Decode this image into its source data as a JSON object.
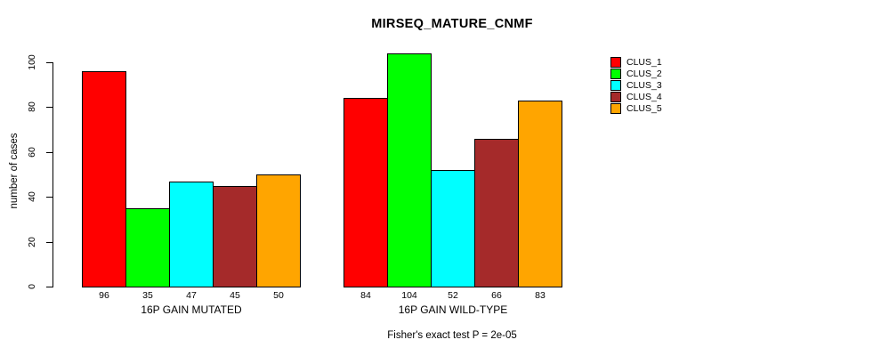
{
  "title": "MIRSEQ_MATURE_CNMF",
  "y_axis": {
    "label": "number of cases",
    "ticks": [
      0,
      20,
      40,
      60,
      80,
      100
    ]
  },
  "footer": "Fisher's exact test P = 2e-05",
  "legend": {
    "items": [
      {
        "name": "CLUS_1",
        "color": "#FF0000"
      },
      {
        "name": "CLUS_2",
        "color": "#00FF00"
      },
      {
        "name": "CLUS_3",
        "color": "#00FFFF"
      },
      {
        "name": "CLUS_4",
        "color": "#A52A2A"
      },
      {
        "name": "CLUS_5",
        "color": "#FFA500"
      }
    ]
  },
  "chart_data": {
    "type": "bar",
    "title": "MIRSEQ_MATURE_CNMF",
    "xlabel": "",
    "ylabel": "number of cases",
    "ylim": [
      0,
      105
    ],
    "yticks": [
      0,
      20,
      40,
      60,
      80,
      100
    ],
    "grid": false,
    "legend_position": "top-right",
    "series_names": [
      "CLUS_1",
      "CLUS_2",
      "CLUS_3",
      "CLUS_4",
      "CLUS_5"
    ],
    "series_colors": [
      "#FF0000",
      "#00FF00",
      "#00FFFF",
      "#A52A2A",
      "#FFA500"
    ],
    "groups": [
      {
        "label": "16P GAIN MUTATED",
        "values": [
          96,
          35,
          47,
          45,
          50
        ]
      },
      {
        "label": "16P GAIN WILD-TYPE",
        "values": [
          84,
          104,
          52,
          66,
          83
        ]
      }
    ],
    "annotation": "Fisher's exact test P = 2e-05"
  }
}
